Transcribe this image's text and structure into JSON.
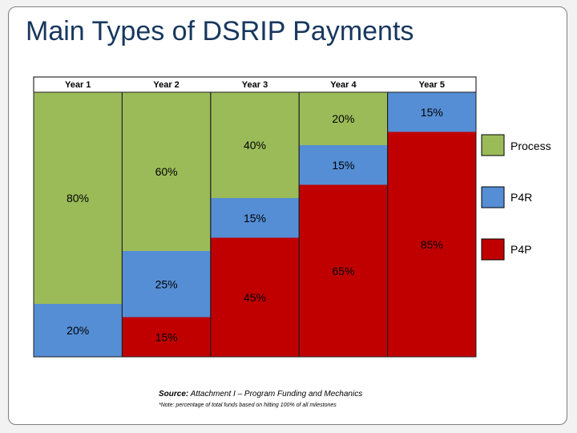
{
  "slide": {
    "title": "Main Types of DSRIP Payments",
    "source_label": "Source:",
    "source_text": "Attachment I – Program Funding and Mechanics",
    "note": "*Note: percentage of total funds based on hitting 100% of all milestones"
  },
  "chart_data": {
    "type": "bar",
    "stacked": true,
    "orientation": "vertical",
    "categories": [
      "Year 1",
      "Year 2",
      "Year 3",
      "Year 4",
      "Year 5"
    ],
    "series": [
      {
        "name": "P4P",
        "values": [
          0,
          15,
          45,
          65,
          85
        ],
        "labels": [
          "",
          "15%",
          "45%",
          "65%",
          "85%"
        ]
      },
      {
        "name": "P4R",
        "values": [
          20,
          25,
          15,
          15,
          15
        ],
        "labels": [
          "20%",
          "25%",
          "15%",
          "15%",
          "15%"
        ]
      },
      {
        "name": "Process",
        "values": [
          80,
          60,
          40,
          20,
          0
        ],
        "labels": [
          "80%",
          "60%",
          "40%",
          "20%",
          ""
        ]
      }
    ],
    "ylim": [
      0,
      100
    ],
    "legend_position": "right",
    "colors": {
      "Process": "#9bbb59",
      "P4R": "#558ed5",
      "P4P": "#c00000"
    }
  }
}
